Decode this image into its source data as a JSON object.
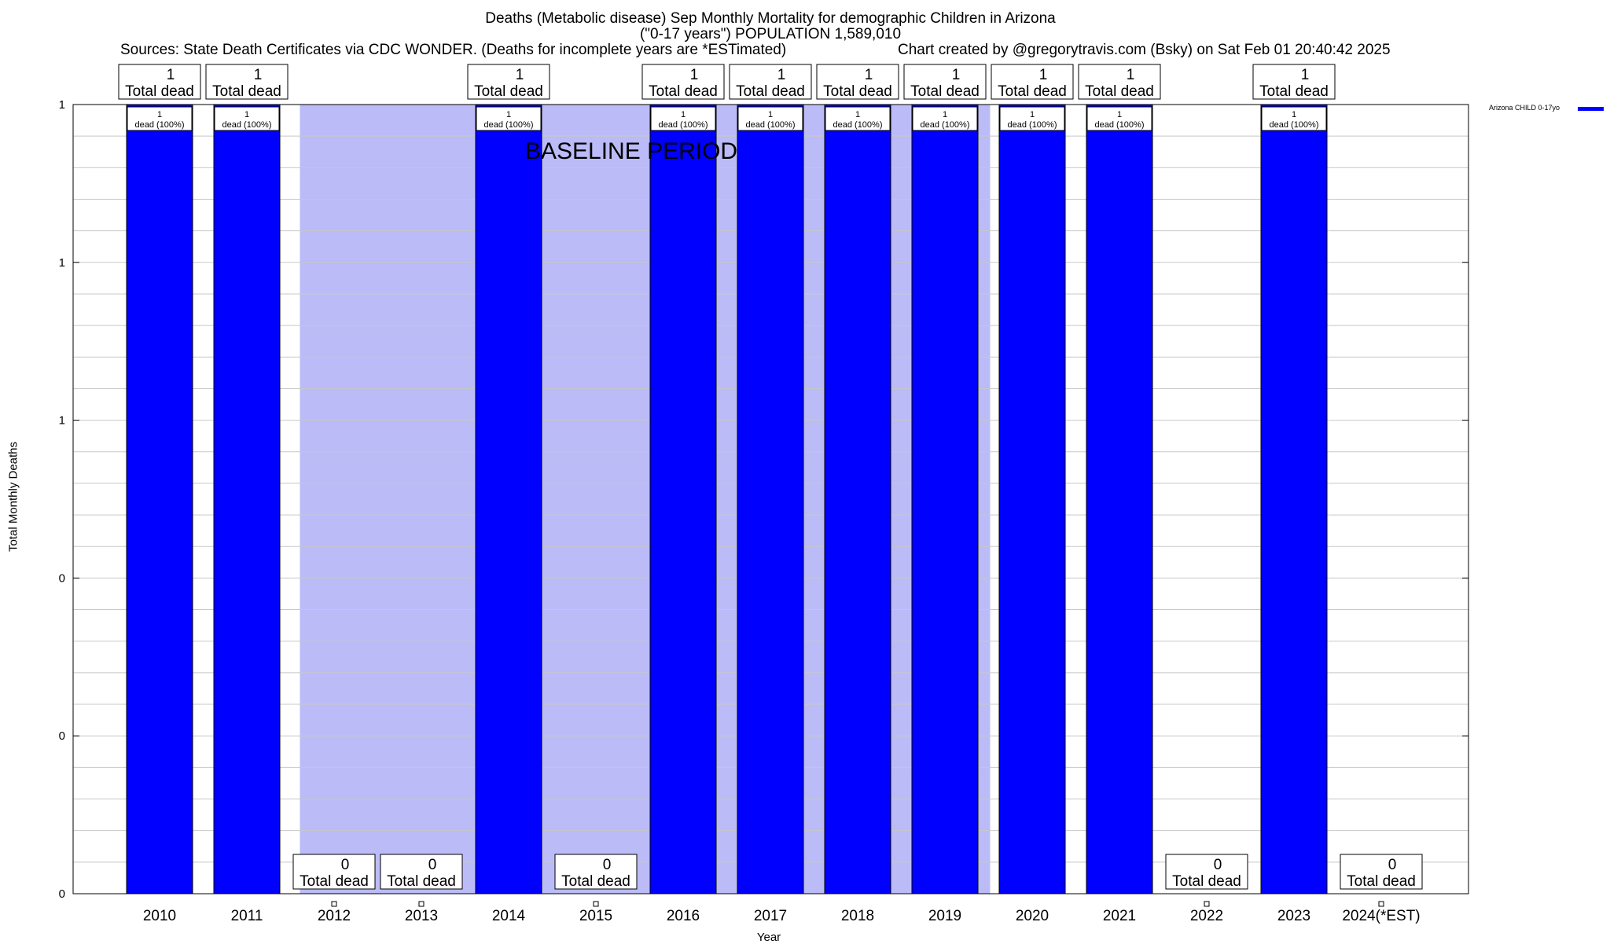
{
  "chart_data": {
    "type": "bar",
    "title_line1": "Deaths (Metabolic disease) Sep Monthly Mortality for demographic Children in Arizona",
    "title_line2": "(\"0-17 years\") POPULATION 1,589,010",
    "sources": "Sources: State Death Certificates via CDC WONDER. (Deaths for incomplete years are *ESTimated)",
    "credit": "Chart created by @gregorytravis.com (Bsky) on Sat Feb 01 20:40:42 2025",
    "xlabel": "Year",
    "ylabel": "Total Monthly Deaths",
    "categories": [
      "2010",
      "2011",
      "2012",
      "2013",
      "2014",
      "2015",
      "2016",
      "2017",
      "2018",
      "2019",
      "2020",
      "2021",
      "2022",
      "2023",
      "2024(*EST)"
    ],
    "series": [
      {
        "name": "Arizona CHILD 0-17yo",
        "color": "#0000ff",
        "values": [
          1,
          1,
          0,
          0,
          1,
          0,
          1,
          1,
          1,
          1,
          1,
          1,
          0,
          1,
          0
        ]
      }
    ],
    "top_labels": [
      "1",
      "1",
      "0",
      "0",
      "1",
      "0",
      "1",
      "1",
      "1",
      "1",
      "1",
      "1",
      "0",
      "1",
      "0"
    ],
    "top_label_suffix": "Total dead",
    "inner_labels": [
      "1",
      "1",
      "",
      "",
      "1",
      "",
      "1",
      "1",
      "1",
      "1",
      "1",
      "1",
      "",
      "1",
      ""
    ],
    "inner_label_suffix": "dead (100%)",
    "ylim": [
      0,
      1
    ],
    "ytick_values": [
      0,
      0.2,
      0.4,
      0.6,
      0.8,
      1
    ],
    "ytick_labels": [
      "0",
      "0",
      "0",
      "1",
      "1",
      "1"
    ],
    "baseline_label": "BASELINE PERIOD",
    "baseline_color": "#bbbbf8",
    "baseline_start": "2012",
    "baseline_end": "2019",
    "grid": true,
    "legend_position": "top-right"
  }
}
